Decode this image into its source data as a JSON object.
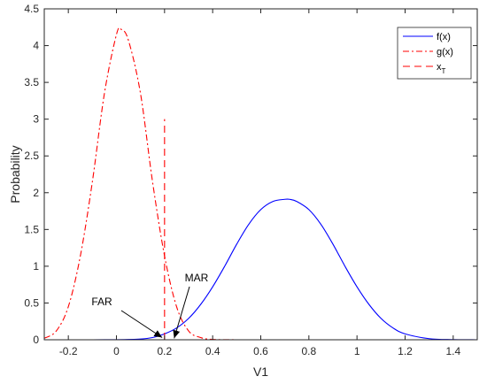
{
  "chart_data": {
    "type": "line",
    "xlabel": "V1",
    "ylabel": "Probability",
    "xlim": [
      -0.3,
      1.5
    ],
    "ylim": [
      0,
      4.5
    ],
    "x_ticks": [
      -0.2,
      0,
      0.2,
      0.4,
      0.6,
      0.8,
      1,
      1.2,
      1.4
    ],
    "x_tick_labels": [
      "-0.2",
      "0",
      "0.2",
      "0.4",
      "0.6",
      "0.8",
      "1",
      "1.2",
      "1.4"
    ],
    "y_ticks": [
      0,
      0.5,
      1,
      1.5,
      2,
      2.5,
      3,
      3.5,
      4,
      4.5
    ],
    "y_tick_labels": [
      "0",
      "0.5",
      "1",
      "1.5",
      "2",
      "2.5",
      "3",
      "3.5",
      "4",
      "4.5"
    ],
    "grid": false,
    "legend_location": "top-right",
    "series": [
      {
        "name": "f(x)",
        "style": "solid",
        "color": "#0000ff",
        "x": [
          -0.3,
          -0.2,
          -0.1,
          0,
          0.1,
          0.15,
          0.2,
          0.25,
          0.3,
          0.35,
          0.4,
          0.45,
          0.5,
          0.55,
          0.6,
          0.65,
          0.7,
          0.72,
          0.75,
          0.8,
          0.85,
          0.9,
          0.95,
          1,
          1.05,
          1.1,
          1.15,
          1.2,
          1.3,
          1.4,
          1.5
        ],
        "y": [
          0,
          0,
          0,
          0.001,
          0.01,
          0.03,
          0.08,
          0.16,
          0.29,
          0.48,
          0.72,
          1.0,
          1.3,
          1.57,
          1.77,
          1.88,
          1.91,
          1.91,
          1.88,
          1.77,
          1.57,
          1.3,
          1.0,
          0.72,
          0.48,
          0.29,
          0.16,
          0.08,
          0.015,
          0.002,
          0
        ]
      },
      {
        "name": "g(x)",
        "style": "dashdot",
        "color": "#ff0000",
        "x": [
          -0.3,
          -0.25,
          -0.2,
          -0.15,
          -0.1,
          -0.05,
          0,
          0.02,
          0.05,
          0.1,
          0.15,
          0.2,
          0.25,
          0.3,
          0.35,
          0.4,
          0.5,
          0.7,
          1,
          1.5
        ],
        "y": [
          0.02,
          0.12,
          0.45,
          1.14,
          2.15,
          3.35,
          4.15,
          4.22,
          4.07,
          3.35,
          2.15,
          1.14,
          0.45,
          0.12,
          0.03,
          0.005,
          0,
          0,
          0,
          0
        ]
      },
      {
        "name": "x_T",
        "style": "dashed",
        "color": "#ff0000",
        "x": [
          0.2,
          0.2
        ],
        "y": [
          0,
          3
        ]
      }
    ],
    "legend": [
      {
        "label": "f(x)",
        "style": "solid",
        "color": "#0000ff"
      },
      {
        "label": "g(x)",
        "style": "dashdot",
        "color": "#ff0000"
      },
      {
        "label": "x",
        "sub": "T",
        "style": "dashed",
        "color": "#ff0000"
      }
    ],
    "annotations": [
      {
        "text": "FAR",
        "arrow_to": [
          0.19,
          0.03
        ]
      },
      {
        "text": "MAR",
        "arrow_to": [
          0.24,
          0.02
        ]
      }
    ]
  }
}
